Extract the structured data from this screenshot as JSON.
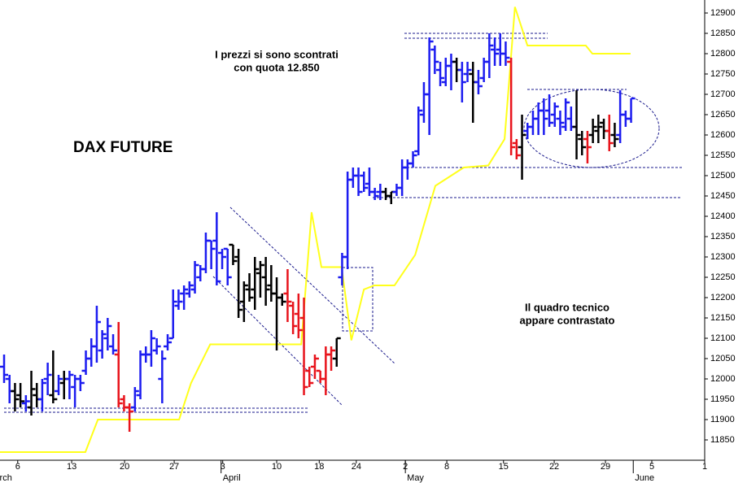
{
  "chart_data": {
    "type": "ohlc",
    "title": "DAX FUTURE",
    "annotations": [
      "I prezzi si sono scontrati",
      "con quota 12.850",
      "Il quadro tecnico",
      "appare contrastato"
    ],
    "x": [
      1,
      2,
      3,
      4,
      5,
      6,
      7,
      8,
      9,
      10,
      11,
      12,
      13,
      14,
      15,
      16,
      17,
      18,
      19,
      20,
      21,
      22,
      23,
      24,
      25,
      26,
      27,
      28,
      29,
      30,
      31,
      32,
      33,
      34,
      35,
      36,
      37,
      38,
      39,
      40,
      41,
      42,
      43,
      44,
      45,
      46,
      47,
      48,
      49,
      50,
      51,
      52,
      53,
      54,
      55,
      56,
      57,
      58,
      59,
      60,
      61,
      62,
      63,
      64,
      65,
      66,
      67,
      68,
      69,
      70,
      71,
      72,
      73,
      74,
      75,
      76,
      77,
      78,
      79,
      80,
      81,
      82,
      83,
      84,
      85,
      86,
      87,
      88,
      89,
      90,
      91,
      92,
      93,
      94,
      95,
      96,
      97,
      98,
      99,
      100,
      101,
      102,
      103,
      104,
      105,
      106,
      107,
      108,
      109,
      110,
      111,
      112,
      113,
      114,
      115,
      116
    ],
    "open": [
      12030,
      12000,
      11970,
      11960,
      11940,
      11930,
      11960,
      11950,
      12000,
      11960,
      11970,
      11990,
      12000,
      11980,
      12000,
      12020,
      12050,
      12080,
      12070,
      12100,
      12080,
      12060,
      11950,
      11930,
      11930,
      11960,
      12060,
      12060,
      12070,
      12000,
      12080,
      12100,
      12180,
      12210,
      12210,
      12220,
      12250,
      12270,
      12340,
      12340,
      12310,
      12320,
      12330,
      12300,
      12190,
      12220,
      12220,
      12260,
      12250,
      12230,
      12210,
      12200,
      12210,
      12180,
      12160,
      12150,
      12020,
      12030,
      12020,
      12000,
      12060,
      12050,
      12250,
      12300,
      12490,
      12500,
      12500,
      12480,
      12460,
      12460,
      12460,
      12450,
      12460,
      12470,
      12520,
      12530,
      12560,
      12650,
      12700,
      12810,
      12760,
      12730,
      12770,
      12780,
      12760,
      12750,
      12750,
      12730,
      12740,
      12780,
      12810,
      12810,
      12800,
      12780,
      12580,
      12570,
      12610,
      12620,
      12640,
      12660,
      12660,
      12650,
      12640,
      12620,
      12640,
      12620,
      12590,
      12590,
      12600,
      12610,
      12630,
      12610,
      12600,
      12600,
      12650,
      12640
    ],
    "high": [
      12060,
      12010,
      11990,
      11990,
      11960,
      12020,
      11990,
      12000,
      12040,
      12070,
      12010,
      12020,
      12020,
      12010,
      12010,
      12070,
      12100,
      12180,
      12120,
      12150,
      12110,
      12140,
      11960,
      11940,
      11980,
      12070,
      12080,
      12120,
      12100,
      12070,
      12110,
      12220,
      12220,
      12230,
      12240,
      12290,
      12280,
      12360,
      12340,
      12410,
      12320,
      12320,
      12330,
      12320,
      12240,
      12260,
      12300,
      12290,
      12300,
      12280,
      12250,
      12210,
      12270,
      12190,
      12210,
      12200,
      12030,
      12060,
      12020,
      12080,
      12080,
      12100,
      12310,
      12510,
      12520,
      12520,
      12510,
      12520,
      12470,
      12480,
      12470,
      12460,
      12480,
      12540,
      12540,
      12560,
      12670,
      12730,
      12840,
      12820,
      12780,
      12790,
      12800,
      12790,
      12780,
      12780,
      12780,
      12760,
      12790,
      12850,
      12840,
      12850,
      12830,
      12790,
      12590,
      12650,
      12630,
      12660,
      12680,
      12690,
      12700,
      12680,
      12660,
      12690,
      12670,
      12710,
      12610,
      12610,
      12640,
      12650,
      12640,
      12650,
      12630,
      12710,
      12660,
      12690
    ],
    "low": [
      11990,
      11940,
      11920,
      11930,
      11920,
      11910,
      11930,
      11920,
      11960,
      11940,
      11960,
      11950,
      11950,
      11930,
      11970,
      12010,
      12030,
      12040,
      12050,
      12070,
      12060,
      11930,
      11920,
      11870,
      11920,
      11950,
      12040,
      12030,
      12060,
      11940,
      12070,
      12100,
      12170,
      12170,
      12200,
      12210,
      12240,
      12260,
      12270,
      12230,
      12270,
      12230,
      12280,
      12150,
      12140,
      12190,
      12170,
      12200,
      12180,
      12190,
      12070,
      12180,
      12140,
      12110,
      12100,
      11960,
      11980,
      12000,
      11990,
      11960,
      12020,
      12030,
      12230,
      12270,
      12470,
      12450,
      12460,
      12450,
      12440,
      12440,
      12440,
      12430,
      12450,
      12450,
      12490,
      12520,
      12550,
      12630,
      12600,
      12750,
      12720,
      12720,
      12710,
      12730,
      12680,
      12730,
      12630,
      12700,
      12730,
      12740,
      12770,
      12770,
      12770,
      12550,
      12540,
      12490,
      12590,
      12600,
      12600,
      12600,
      12620,
      12620,
      12600,
      12610,
      12610,
      12540,
      12550,
      12530,
      12580,
      12580,
      12590,
      12560,
      12570,
      12580,
      12620,
      12630
    ],
    "close": [
      12010,
      11970,
      11950,
      11945,
      11945,
      11975,
      11950,
      11990,
      12010,
      11950,
      12000,
      12000,
      12010,
      12000,
      11990,
      12050,
      12080,
      12140,
      12110,
      12130,
      12070,
      11940,
      11930,
      11920,
      11970,
      12060,
      12060,
      12100,
      12080,
      12050,
      12090,
      12190,
      12190,
      12220,
      12230,
      12280,
      12270,
      12340,
      12320,
      12240,
      12300,
      12250,
      12290,
      12170,
      12230,
      12200,
      12270,
      12280,
      12220,
      12210,
      12200,
      12190,
      12190,
      12130,
      12120,
      11980,
      11990,
      12050,
      12000,
      12060,
      12070,
      12100,
      12300,
      12490,
      12500,
      12460,
      12470,
      12460,
      12450,
      12460,
      12450,
      12460,
      12470,
      12520,
      12530,
      12550,
      12660,
      12700,
      12830,
      12780,
      12740,
      12770,
      12780,
      12760,
      12730,
      12760,
      12730,
      12720,
      12780,
      12820,
      12800,
      12800,
      12790,
      12570,
      12550,
      12600,
      12620,
      12640,
      12660,
      12640,
      12630,
      12670,
      12630,
      12680,
      12620,
      12600,
      12570,
      12570,
      12620,
      12620,
      12610,
      12580,
      12590,
      12650,
      12640,
      12690
    ],
    "colors": [
      "#1c1cf0",
      "#1c1cf0",
      "#000000",
      "#000000",
      "#1c1cf0",
      "#000000",
      "#000000",
      "#1c1cf0",
      "#1c1cf0",
      "#000000",
      "#1c1cf0",
      "#000000",
      "#1c1cf0",
      "#1c1cf0",
      "#1c1cf0",
      "#1c1cf0",
      "#1c1cf0",
      "#1c1cf0",
      "#1c1cf0",
      "#1c1cf0",
      "#1c1cf0",
      "#e8141c",
      "#e8141c",
      "#e8141c",
      "#1c1cf0",
      "#1c1cf0",
      "#1c1cf0",
      "#1c1cf0",
      "#1c1cf0",
      "#1c1cf0",
      "#1c1cf0",
      "#1c1cf0",
      "#1c1cf0",
      "#1c1cf0",
      "#1c1cf0",
      "#1c1cf0",
      "#1c1cf0",
      "#1c1cf0",
      "#1c1cf0",
      "#1c1cf0",
      "#1c1cf0",
      "#1c1cf0",
      "#000000",
      "#000000",
      "#000000",
      "#000000",
      "#000000",
      "#000000",
      "#000000",
      "#000000",
      "#000000",
      "#000000",
      "#e8141c",
      "#e8141c",
      "#e8141c",
      "#e8141c",
      "#e8141c",
      "#e8141c",
      "#e8141c",
      "#e8141c",
      "#e8141c",
      "#000000",
      "#1c1cf0",
      "#1c1cf0",
      "#1c1cf0",
      "#1c1cf0",
      "#1c1cf0",
      "#1c1cf0",
      "#1c1cf0",
      "#1c1cf0",
      "#000000",
      "#000000",
      "#1c1cf0",
      "#1c1cf0",
      "#1c1cf0",
      "#1c1cf0",
      "#1c1cf0",
      "#1c1cf0",
      "#1c1cf0",
      "#1c1cf0",
      "#1c1cf0",
      "#1c1cf0",
      "#1c1cf0",
      "#000000",
      "#1c1cf0",
      "#1c1cf0",
      "#000000",
      "#1c1cf0",
      "#1c1cf0",
      "#1c1cf0",
      "#1c1cf0",
      "#1c1cf0",
      "#1c1cf0",
      "#e8141c",
      "#e8141c",
      "#000000",
      "#1c1cf0",
      "#1c1cf0",
      "#1c1cf0",
      "#1c1cf0",
      "#1c1cf0",
      "#1c1cf0",
      "#1c1cf0",
      "#1c1cf0",
      "#1c1cf0",
      "#000000",
      "#000000",
      "#e8141c",
      "#000000",
      "#000000",
      "#000000",
      "#e8141c",
      "#000000",
      "#1c1cf0",
      "#1c1cf0",
      "#1c1cf0"
    ],
    "line": {
      "color": "#ffff1a",
      "x": [
        0.25,
        15.9,
        18.2,
        33.1,
        35.3,
        38.8,
        55.5,
        57.4,
        59.2,
        62.9,
        64.7,
        67,
        68.9,
        72.6,
        76.4,
        80.1,
        85.3,
        89.8,
        92.8,
        94.7,
        97,
        107.7,
        108.9,
        115.9
      ],
      "values": [
        11820,
        11820,
        11900,
        11900,
        11990,
        12085,
        12085,
        12410,
        12275,
        12275,
        12095,
        12220,
        12230,
        12230,
        12305,
        12475,
        12520,
        12525,
        12590,
        12915,
        12820,
        12820,
        12800,
        12800
      ]
    },
    "xlim": [
      0.25,
      129.5
    ],
    "ylim": [
      11800,
      12932
    ],
    "yticks": [
      11850,
      11900,
      11950,
      12000,
      12050,
      12100,
      12150,
      12200,
      12250,
      12300,
      12350,
      12400,
      12450,
      12500,
      12550,
      12600,
      12650,
      12700,
      12750,
      12800,
      12850,
      12900
    ],
    "xticks": [
      {
        "value": 3.5,
        "label": "6"
      },
      {
        "value": 13.4,
        "label": "13"
      },
      {
        "value": 23.1,
        "label": "20"
      },
      {
        "value": 32.2,
        "label": "27"
      },
      {
        "value": 41.1,
        "label": "3"
      },
      {
        "value": 51,
        "label": "10"
      },
      {
        "value": 58.8,
        "label": "18"
      },
      {
        "value": 65.6,
        "label": "24"
      },
      {
        "value": 74.6,
        "label": "2"
      },
      {
        "value": 82.2,
        "label": "8"
      },
      {
        "value": 92.6,
        "label": "15"
      },
      {
        "value": 101.9,
        "label": "22"
      },
      {
        "value": 111.3,
        "label": "29"
      },
      {
        "value": 119.8,
        "label": "5"
      },
      {
        "value": 129.5,
        "label": "1"
      }
    ],
    "month_labels": [
      {
        "value": -2.4,
        "label": "March"
      },
      {
        "value": 40.8,
        "label": "April"
      },
      {
        "value": 74.6,
        "label": "May"
      },
      {
        "value": 116.4,
        "label": "June"
      }
    ]
  }
}
